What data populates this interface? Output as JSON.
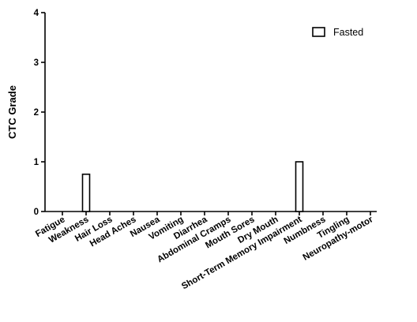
{
  "chart_data": {
    "type": "bar",
    "title": "",
    "xlabel": "",
    "ylabel": "CTC Grade",
    "ylim": [
      0,
      4
    ],
    "yticks": [
      0,
      1,
      2,
      3,
      4
    ],
    "grid": false,
    "legend_position": "top-right",
    "categories": [
      "Fatigue",
      "Weakness",
      "Hair Loss",
      "Head Aches",
      "Nausea",
      "Vomiting",
      "Diarrhea",
      "Abdominal Cramps",
      "Mouth Sores",
      "Dry Mouth",
      "Short-Term Memory Impairment",
      "Numbness",
      "Tingling",
      "Neuropathy-motor"
    ],
    "series": [
      {
        "name": "Fasted",
        "color": "#000000",
        "fill": "#ffffff",
        "values": [
          0,
          0.75,
          0,
          0,
          0,
          0,
          0,
          0,
          0,
          0,
          1,
          0,
          0,
          0
        ]
      }
    ]
  }
}
